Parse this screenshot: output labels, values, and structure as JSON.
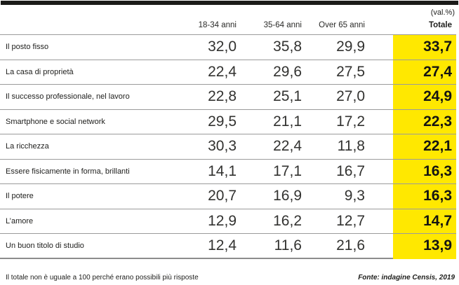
{
  "unit_label": "(val.%)",
  "colors": {
    "highlight_yellow": "#ffe800",
    "rule_gray": "#9b9b9b",
    "top_bar_black": "#1b1b19"
  },
  "table": {
    "column_headers": [
      "18-34 anni",
      "35-64 anni",
      "Over 65 anni",
      "Totale"
    ],
    "rows": [
      {
        "label": "Il posto fisso",
        "values": [
          "32,0",
          "35,8",
          "29,9"
        ],
        "total": "33,7"
      },
      {
        "label": "La casa di proprietà",
        "values": [
          "22,4",
          "29,6",
          "27,5"
        ],
        "total": "27,4"
      },
      {
        "label": "Il successo professionale, nel lavoro",
        "values": [
          "22,8",
          "25,1",
          "27,0"
        ],
        "total": "24,9"
      },
      {
        "label": "Smartphone e social network",
        "values": [
          "29,5",
          "21,1",
          "17,2"
        ],
        "total": "22,3"
      },
      {
        "label": "La ricchezza",
        "values": [
          "30,3",
          "22,4",
          "11,8"
        ],
        "total": "22,1"
      },
      {
        "label": "Essere fisicamente in forma, brillanti",
        "values": [
          "14,1",
          "17,1",
          "16,7"
        ],
        "total": "16,3"
      },
      {
        "label": "Il potere",
        "values": [
          "20,7",
          "16,9",
          "9,3"
        ],
        "total": "16,3"
      },
      {
        "label": "L’amore",
        "values": [
          "12,9",
          "16,2",
          "12,7"
        ],
        "total": "14,7"
      },
      {
        "label": "Un buon titolo di studio",
        "values": [
          "12,4",
          "11,6",
          "21,6"
        ],
        "total": "13,9"
      }
    ]
  },
  "footer": {
    "note": "Il totale non è uguale a 100 perché erano possibili più risposte",
    "source": "Fonte: indagine Censis, 2019"
  },
  "chart_data": {
    "type": "table",
    "unit": "val.%",
    "categories": [
      "18-34 anni",
      "35-64 anni",
      "Over 65 anni",
      "Totale"
    ],
    "rows": [
      "Il posto fisso",
      "La casa di proprietà",
      "Il successo professionale, nel lavoro",
      "Smartphone e social network",
      "La ricchezza",
      "Essere fisicamente in forma, brillanti",
      "Il potere",
      "L’amore",
      "Un buon titolo di studio"
    ],
    "values": [
      [
        32.0,
        35.8,
        29.9,
        33.7
      ],
      [
        22.4,
        29.6,
        27.5,
        27.4
      ],
      [
        22.8,
        25.1,
        27.0,
        24.9
      ],
      [
        29.5,
        21.1,
        17.2,
        22.3
      ],
      [
        30.3,
        22.4,
        11.8,
        22.1
      ],
      [
        14.1,
        17.1,
        16.7,
        16.3
      ],
      [
        20.7,
        16.9,
        9.3,
        16.3
      ],
      [
        12.9,
        16.2,
        12.7,
        14.7
      ],
      [
        12.4,
        11.6,
        21.6,
        13.9
      ]
    ],
    "highlight_column": "Totale",
    "legend_position": "none",
    "note": "Il totale non è uguale a 100 perché erano possibili più risposte",
    "source": "Fonte: indagine Censis, 2019"
  }
}
